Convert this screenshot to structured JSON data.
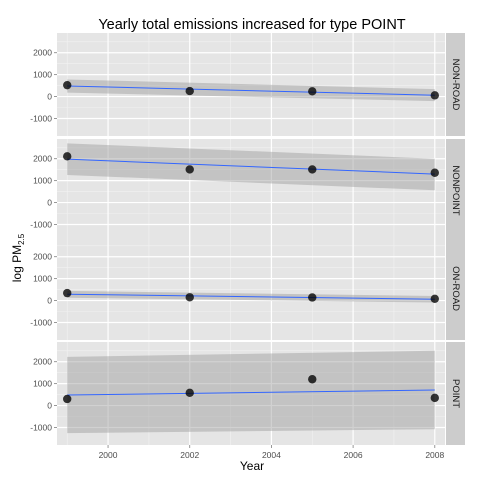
{
  "chart_data": {
    "type": "scatter",
    "title": "Yearly total emissions increased for type POINT",
    "xlabel": "Year",
    "ylabel_main": "log PM",
    "ylabel_sub": "2.5",
    "x_ticks": [
      2000,
      2002,
      2004,
      2006,
      2008
    ],
    "y_ticks": [
      -1000,
      0,
      1000,
      2000
    ],
    "xlim": [
      1998.75,
      2008.25
    ],
    "ylim": [
      -1800,
      2900
    ],
    "grid": true,
    "facets": [
      {
        "name": "NON-ROAD",
        "x": [
          1999,
          2002,
          2005,
          2008
        ],
        "y": [
          520,
          250,
          240,
          55
        ],
        "fit": {
          "x": [
            1999,
            2008
          ],
          "y": [
            480,
            60
          ]
        },
        "band": {
          "upper": [
            780,
            340
          ],
          "lower": [
            180,
            -210
          ]
        }
      },
      {
        "name": "NONPOINT",
        "x": [
          1999,
          2002,
          2005,
          2008
        ],
        "y": [
          2110,
          1510,
          1510,
          1360
        ],
        "fit": {
          "x": [
            1999,
            2008
          ],
          "y": [
            1980,
            1300
          ]
        },
        "band": {
          "upper": [
            2700,
            2000
          ],
          "lower": [
            1260,
            560
          ]
        }
      },
      {
        "name": "ON-ROAD",
        "x": [
          1999,
          2002,
          2005,
          2008
        ],
        "y": [
          340,
          150,
          140,
          80
        ],
        "fit": {
          "x": [
            1999,
            2008
          ],
          "y": [
            290,
            60
          ]
        },
        "band": {
          "upper": [
            440,
            210
          ],
          "lower": [
            130,
            -90
          ]
        }
      },
      {
        "name": "POINT",
        "x": [
          1999,
          2002,
          2005,
          2008
        ],
        "y": [
          300,
          580,
          1200,
          350
        ],
        "fit": {
          "x": [
            1999,
            2008
          ],
          "y": [
            480,
            710
          ]
        },
        "band": {
          "upper": [
            2220,
            2500
          ],
          "lower": [
            -1260,
            -1080
          ]
        }
      }
    ]
  },
  "colors": {
    "panel_bg": "#e5e5e5",
    "grid_major": "#ffffff",
    "grid_minor": "#f2f2f2",
    "strip_bg": "#cccccc",
    "band_fill": "#999999",
    "fit_line": "#3366ff",
    "point": "#000000"
  }
}
